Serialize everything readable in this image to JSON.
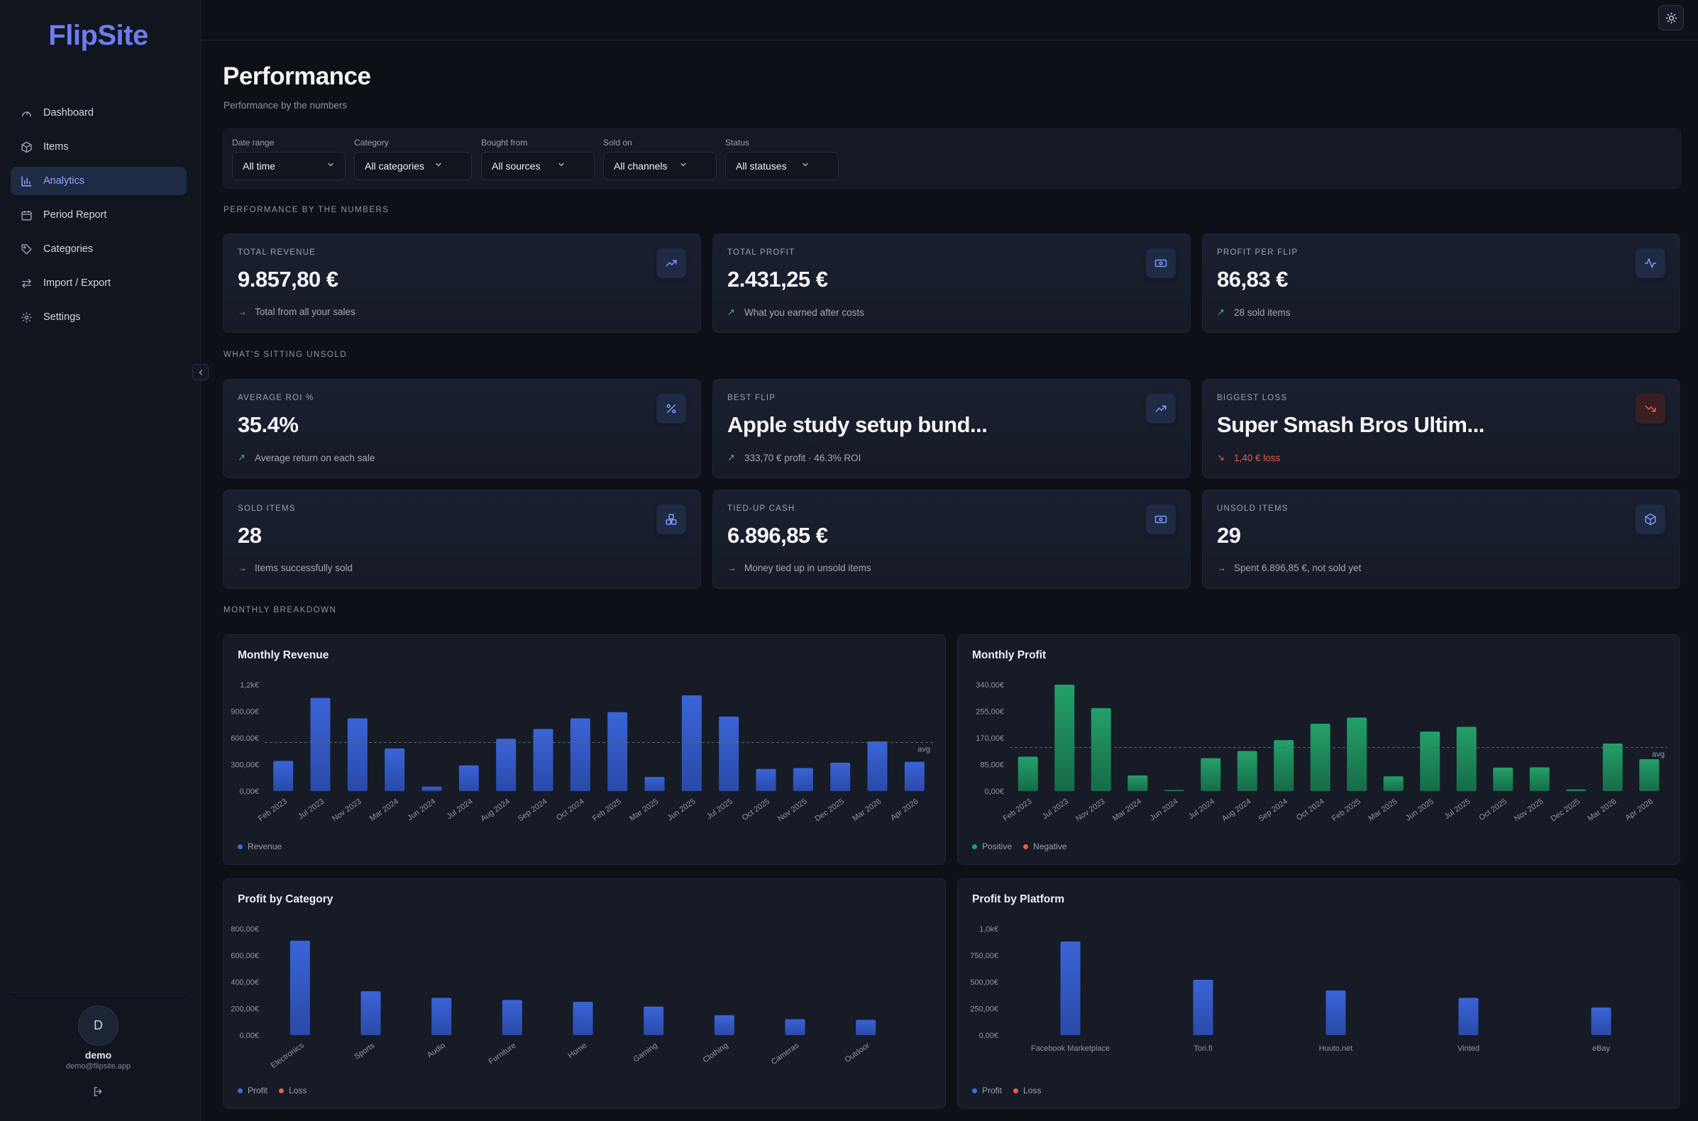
{
  "app": {
    "name": "FlipSite"
  },
  "sidebar": {
    "items": [
      {
        "label": "Dashboard",
        "icon": "gauge-icon"
      },
      {
        "label": "Items",
        "icon": "box-icon"
      },
      {
        "label": "Analytics",
        "icon": "bar-chart-icon",
        "active": true
      },
      {
        "label": "Period Report",
        "icon": "calendar-icon"
      },
      {
        "label": "Categories",
        "icon": "tag-icon"
      },
      {
        "label": "Import / Export",
        "icon": "arrows-swap-icon"
      },
      {
        "label": "Settings",
        "icon": "gear-icon"
      }
    ],
    "user": {
      "initial": "D",
      "name": "demo",
      "email": "demo@flipsite.app"
    }
  },
  "page": {
    "title": "Performance",
    "subtitle": "Performance by the numbers"
  },
  "filters": [
    {
      "label": "Date range",
      "value": "All time"
    },
    {
      "label": "Category",
      "value": "All categories"
    },
    {
      "label": "Bought from",
      "value": "All sources"
    },
    {
      "label": "Sold on",
      "value": "All channels"
    },
    {
      "label": "Status",
      "value": "All statuses"
    }
  ],
  "sections": {
    "numbers": "PERFORMANCE BY THE NUMBERS",
    "unsold": "WHAT'S SITTING UNSOLD",
    "monthly": "MONTHLY BREAKDOWN"
  },
  "cards": [
    {
      "label": "TOTAL REVENUE",
      "value": "9.857,80 €",
      "sub": "Total from all your sales",
      "trend": "flat",
      "icon": "trend-up-icon"
    },
    {
      "label": "TOTAL PROFIT",
      "value": "2.431,25 €",
      "sub": "What you earned after costs",
      "trend": "up",
      "icon": "banknote-icon"
    },
    {
      "label": "PROFIT PER FLIP",
      "value": "86,83 €",
      "sub": "28 sold items",
      "trend": "up",
      "icon": "activity-icon"
    },
    {
      "label": "AVERAGE ROI %",
      "value": "35.4%",
      "sub": "Average return on each sale",
      "trend": "up",
      "icon": "percent-icon"
    },
    {
      "label": "BEST FLIP",
      "value": "Apple study setup bund...",
      "sub": "333,70 € profit · 46.3% ROI",
      "trend": "up",
      "icon": "trend-up-icon"
    },
    {
      "label": "BIGGEST LOSS",
      "value": "Super Smash Bros Ultim...",
      "sub": "1,40 € loss",
      "trend": "down",
      "icon": "trend-down-icon"
    },
    {
      "label": "SOLD ITEMS",
      "value": "28",
      "sub": "Items successfully sold",
      "trend": "flat",
      "icon": "boxes-icon"
    },
    {
      "label": "TIED-UP CASH",
      "value": "6.896,85 €",
      "sub": "Money tied up in unsold items",
      "trend": "flat",
      "icon": "banknote-icon"
    },
    {
      "label": "UNSOLD ITEMS",
      "value": "29",
      "sub": "Spent 6.896,85 €, not sold yet",
      "trend": "flat",
      "icon": "package-icon"
    }
  ],
  "colors": {
    "accent": "#6e7cf0",
    "bar_blue": "#3056c4",
    "bar_green": "#1f8f5f",
    "negative": "#ef5a4a"
  },
  "chart_data": [
    {
      "type": "bar",
      "title": "Monthly Revenue",
      "categories": [
        "Feb 2023",
        "Jul 2023",
        "Nov 2023",
        "Mar 2024",
        "Jun 2024",
        "Jul 2024",
        "Aug 2024",
        "Sep 2024",
        "Oct 2024",
        "Feb 2025",
        "Mar 2025",
        "Jun 2025",
        "Jul 2025",
        "Oct 2025",
        "Nov 2025",
        "Dec 2025",
        "Mar 2026",
        "Apr 2026"
      ],
      "values": [
        340,
        1050,
        820,
        480,
        50,
        290,
        590,
        700,
        820,
        890,
        160,
        1080,
        840,
        250,
        260,
        320,
        560,
        330
      ],
      "y_ticks": [
        "0,00€",
        "300,00€",
        "600,00€",
        "900,00€",
        "1,2k€"
      ],
      "ylim": [
        0,
        1200
      ],
      "avg": 548,
      "avg_label": "avg",
      "legend": [
        "Revenue"
      ]
    },
    {
      "type": "bar",
      "title": "Monthly Profit",
      "categories": [
        "Feb 2023",
        "Jul 2023",
        "Nov 2023",
        "Mar 2024",
        "Jun 2024",
        "Jul 2024",
        "Aug 2024",
        "Sep 2024",
        "Oct 2024",
        "Feb 2025",
        "Mar 2025",
        "Jun 2025",
        "Jul 2025",
        "Oct 2025",
        "Nov 2025",
        "Dec 2025",
        "Mar 2026",
        "Apr 2026"
      ],
      "values": [
        110,
        340,
        265,
        50,
        3,
        105,
        128,
        163,
        215,
        235,
        47,
        190,
        205,
        75,
        76,
        5,
        152,
        102
      ],
      "y_ticks": [
        "0,00€",
        "85,00€",
        "170,00€",
        "255,00€",
        "340,00€"
      ],
      "ylim": [
        0,
        340
      ],
      "avg": 139,
      "avg_label": "avg",
      "legend": [
        "Positive",
        "Negative"
      ]
    },
    {
      "type": "bar",
      "title": "Profit by Category",
      "categories": [
        "Electronics",
        "Sports",
        "Audio",
        "Furniture",
        "Home",
        "Gaming",
        "Clothing",
        "Cameras",
        "Outdoor"
      ],
      "values": [
        710,
        330,
        280,
        265,
        250,
        215,
        150,
        120,
        115
      ],
      "y_ticks": [
        "0,00€",
        "200,00€",
        "400,00€",
        "600,00€",
        "800,00€"
      ],
      "ylim": [
        0,
        800
      ],
      "legend": [
        "Profit",
        "Loss"
      ]
    },
    {
      "type": "bar",
      "title": "Profit by Platform",
      "categories": [
        "Facebook Marketplace",
        "Tori.fi",
        "Huuto.net",
        "Vinted",
        "eBay"
      ],
      "values": [
        880,
        520,
        420,
        350,
        260
      ],
      "y_ticks": [
        "0,00€",
        "250,00€",
        "500,00€",
        "750,00€",
        "1,0k€"
      ],
      "ylim": [
        0,
        1000
      ],
      "legend": [
        "Profit",
        "Loss"
      ]
    }
  ]
}
